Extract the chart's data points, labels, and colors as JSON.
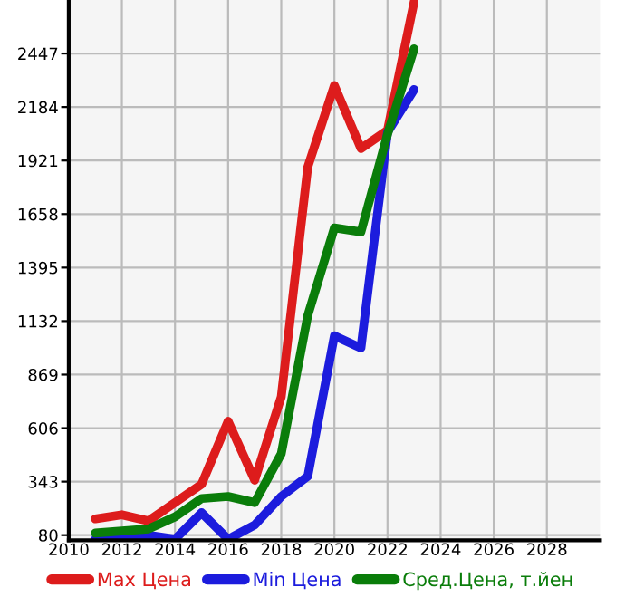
{
  "chart_data": {
    "type": "line",
    "x": [
      2011,
      2012,
      2013,
      2014,
      2015,
      2016,
      2017,
      2018,
      2019,
      2020,
      2021,
      2022,
      2023
    ],
    "series": [
      {
        "name": "Max Цена",
        "color": "#dd1c1c",
        "values": [
          160,
          180,
          150,
          240,
          330,
          640,
          350,
          760,
          1890,
          2290,
          1980,
          2070,
          2700
        ]
      },
      {
        "name": "Min Цена",
        "color": "#1c1cdd",
        "values": [
          60,
          60,
          80,
          60,
          190,
          60,
          130,
          270,
          370,
          1060,
          1000,
          2060,
          2270
        ]
      },
      {
        "name": "Сред.Цена, т.йен",
        "color": "#0a7d0a",
        "values": [
          90,
          100,
          110,
          170,
          260,
          270,
          240,
          480,
          1160,
          1590,
          1570,
          2050,
          2470
        ]
      }
    ],
    "xlim": [
      2010,
      2030
    ],
    "xticks": [
      2010,
      2012,
      2014,
      2016,
      2018,
      2020,
      2022,
      2024,
      2026,
      2028
    ],
    "ylim": [
      55,
      2710
    ],
    "yticks": [
      80,
      343,
      606,
      869,
      1132,
      1395,
      1658,
      1921,
      2184,
      2447
    ],
    "grid": true,
    "legend": "bottom",
    "marker": "none",
    "line_style": "solid"
  }
}
